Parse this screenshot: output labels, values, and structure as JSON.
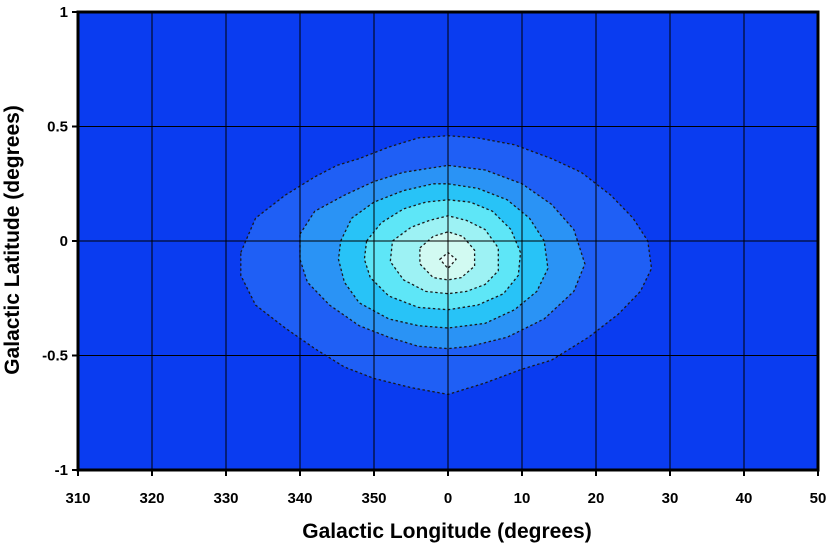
{
  "chart_data": {
    "type": "contour",
    "xlabel": "Galactic Longitude (degrees)",
    "ylabel": "Galactic Latitude (degrees)",
    "xticks": [
      "310",
      "320",
      "330",
      "340",
      "350",
      "0",
      "10",
      "20",
      "30",
      "40",
      "50"
    ],
    "yticks": [
      "1",
      "0.5",
      "0",
      "-0.5",
      "-1"
    ],
    "xlim": [
      -50,
      50
    ],
    "ylim": [
      -1,
      1
    ],
    "grid": true,
    "legend": "none",
    "background_color": "#0a3cf0",
    "contour_levels": [
      {
        "level": 1,
        "color": "#1f5ff5",
        "points": [
          [
            -28,
            -0.05
          ],
          [
            -26,
            0.1
          ],
          [
            -22,
            0.2
          ],
          [
            -18,
            0.28
          ],
          [
            -15,
            0.33
          ],
          [
            -12,
            0.36
          ],
          [
            -8,
            0.41
          ],
          [
            -4,
            0.45
          ],
          [
            0,
            0.46
          ],
          [
            4,
            0.45
          ],
          [
            9,
            0.42
          ],
          [
            14,
            0.36
          ],
          [
            18,
            0.3
          ],
          [
            22,
            0.2
          ],
          [
            25,
            0.1
          ],
          [
            27,
            0.0
          ],
          [
            27.5,
            -0.12
          ],
          [
            26,
            -0.22
          ],
          [
            23,
            -0.32
          ],
          [
            19,
            -0.42
          ],
          [
            14,
            -0.52
          ],
          [
            10,
            -0.56
          ],
          [
            5,
            -0.62
          ],
          [
            0,
            -0.67
          ],
          [
            -5,
            -0.64
          ],
          [
            -10,
            -0.6
          ],
          [
            -14,
            -0.55
          ],
          [
            -18,
            -0.47
          ],
          [
            -22,
            -0.38
          ],
          [
            -26,
            -0.28
          ],
          [
            -28,
            -0.15
          ]
        ]
      },
      {
        "level": 2,
        "color": "#2a93f5",
        "points": [
          [
            -20,
            0.03
          ],
          [
            -18,
            0.13
          ],
          [
            -14,
            0.2
          ],
          [
            -10,
            0.26
          ],
          [
            -6,
            0.3
          ],
          [
            0,
            0.33
          ],
          [
            5,
            0.31
          ],
          [
            10,
            0.25
          ],
          [
            14,
            0.16
          ],
          [
            17,
            0.05
          ],
          [
            18.5,
            -0.1
          ],
          [
            17,
            -0.22
          ],
          [
            13,
            -0.34
          ],
          [
            8,
            -0.42
          ],
          [
            3,
            -0.46
          ],
          [
            0,
            -0.47
          ],
          [
            -4,
            -0.46
          ],
          [
            -8,
            -0.42
          ],
          [
            -12,
            -0.37
          ],
          [
            -16,
            -0.28
          ],
          [
            -19,
            -0.18
          ],
          [
            -20,
            -0.08
          ]
        ]
      },
      {
        "level": 3,
        "color": "#28c3f7",
        "points": [
          [
            -14.5,
            0.0
          ],
          [
            -13,
            0.1
          ],
          [
            -10,
            0.17
          ],
          [
            -6,
            0.22
          ],
          [
            -2,
            0.25
          ],
          [
            0,
            0.25
          ],
          [
            4,
            0.23
          ],
          [
            8,
            0.18
          ],
          [
            11,
            0.1
          ],
          [
            13,
            0.0
          ],
          [
            13.5,
            -0.12
          ],
          [
            12,
            -0.22
          ],
          [
            9,
            -0.3
          ],
          [
            5,
            -0.36
          ],
          [
            0,
            -0.38
          ],
          [
            -4,
            -0.37
          ],
          [
            -8,
            -0.34
          ],
          [
            -12,
            -0.27
          ],
          [
            -14,
            -0.18
          ],
          [
            -14.8,
            -0.08
          ]
        ]
      },
      {
        "level": 4,
        "color": "#5ee6f7",
        "points": [
          [
            -11,
            0.0
          ],
          [
            -9,
            0.08
          ],
          [
            -6,
            0.14
          ],
          [
            -3,
            0.17
          ],
          [
            0,
            0.18
          ],
          [
            3,
            0.17
          ],
          [
            6,
            0.13
          ],
          [
            8.5,
            0.05
          ],
          [
            9.8,
            -0.05
          ],
          [
            9.5,
            -0.15
          ],
          [
            7.5,
            -0.23
          ],
          [
            4,
            -0.28
          ],
          [
            0,
            -0.3
          ],
          [
            -4,
            -0.29
          ],
          [
            -8,
            -0.24
          ],
          [
            -10.5,
            -0.16
          ],
          [
            -11.3,
            -0.08
          ]
        ]
      },
      {
        "level": 5,
        "color": "#9df2f4",
        "points": [
          [
            -7.5,
            0.0
          ],
          [
            -5,
            0.06
          ],
          [
            -2.5,
            0.09
          ],
          [
            0,
            0.11
          ],
          [
            2.5,
            0.09
          ],
          [
            5,
            0.05
          ],
          [
            6.8,
            -0.03
          ],
          [
            6.8,
            -0.13
          ],
          [
            5,
            -0.19
          ],
          [
            2.5,
            -0.22
          ],
          [
            0,
            -0.23
          ],
          [
            -3,
            -0.22
          ],
          [
            -6,
            -0.17
          ],
          [
            -7.8,
            -0.09
          ]
        ]
      },
      {
        "level": 6,
        "color": "#d2faf2",
        "points": [
          [
            -3.8,
            -0.03
          ],
          [
            -2,
            0.02
          ],
          [
            0,
            0.04
          ],
          [
            2,
            0.02
          ],
          [
            3.6,
            -0.04
          ],
          [
            3.6,
            -0.11
          ],
          [
            1.8,
            -0.16
          ],
          [
            0,
            -0.17
          ],
          [
            -2,
            -0.16
          ],
          [
            -3.8,
            -0.1
          ]
        ]
      },
      {
        "level": 7,
        "color": "#e6fdf8",
        "points": [
          [
            -1.1,
            -0.08
          ],
          [
            0,
            -0.05
          ],
          [
            1.1,
            -0.08
          ],
          [
            0,
            -0.12
          ]
        ]
      }
    ]
  }
}
